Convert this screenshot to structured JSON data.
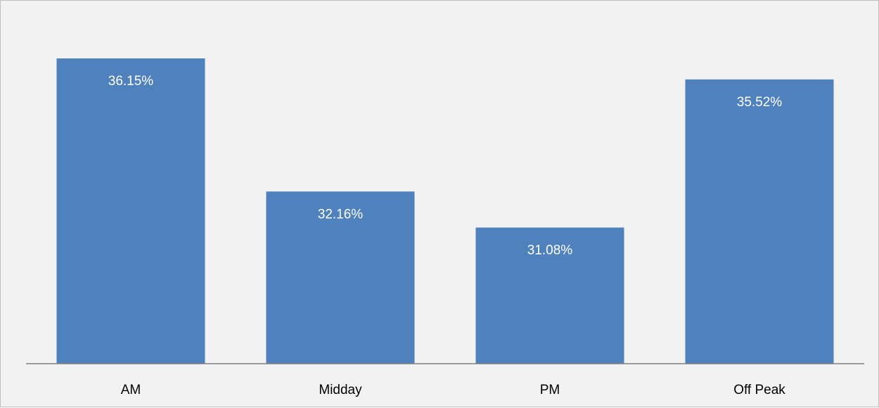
{
  "chart_data": {
    "type": "bar",
    "title": "",
    "xlabel": "",
    "ylabel": "",
    "categories": [
      "AM",
      "Midday",
      "PM",
      "Off Peak"
    ],
    "values": [
      36.15,
      32.16,
      31.08,
      35.52
    ],
    "data_labels": [
      "36.15%",
      "32.16%",
      "31.08%",
      "35.52%"
    ],
    "ylim": [
      27,
      37
    ],
    "grid": false,
    "legend": "none",
    "bar_color": "#4f81bd",
    "label_color": "#ffffff",
    "background_color": "#f2f2f2",
    "axis_color": "#808080"
  }
}
